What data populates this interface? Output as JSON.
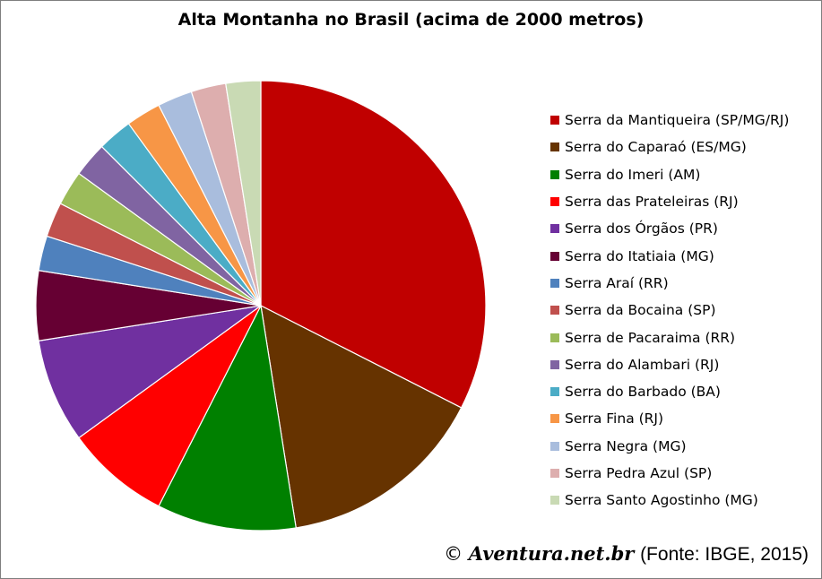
{
  "chart_data": {
    "type": "pie",
    "title": "Alta Montanha no Brasil (acima de 2000 metros)",
    "legend_position": "right",
    "slices": [
      {
        "label": "Serra da Mantiqueira (SP/MG/RJ)",
        "value": 13,
        "color": "#C00000"
      },
      {
        "label": "Serra do Caparaó (ES/MG)",
        "value": 6,
        "color": "#663300"
      },
      {
        "label": "Serra do Imeri (AM)",
        "value": 4,
        "color": "#008000"
      },
      {
        "label": "Serra das Prateleiras (RJ)",
        "value": 3,
        "color": "#FF0000"
      },
      {
        "label": "Serra dos Órgãos (PR)",
        "value": 3,
        "color": "#7030A0"
      },
      {
        "label": "Serra do Itatiaia (MG)",
        "value": 2,
        "color": "#660033"
      },
      {
        "label": "Serra Araí (RR)",
        "value": 1,
        "color": "#4F81BD"
      },
      {
        "label": "Serra da Bocaina (SP)",
        "value": 1,
        "color": "#C0504D"
      },
      {
        "label": "Serra de Pacaraima (RR)",
        "value": 1,
        "color": "#9BBB59"
      },
      {
        "label": "Serra do Alambari (RJ)",
        "value": 1,
        "color": "#8064A2"
      },
      {
        "label": "Serra do Barbado (BA)",
        "value": 1,
        "color": "#4BACC6"
      },
      {
        "label": "Serra Fina (RJ)",
        "value": 1,
        "color": "#F79646"
      },
      {
        "label": "Serra Negra (MG)",
        "value": 1,
        "color": "#A9BDDD"
      },
      {
        "label": "Serra Pedra Azul (SP)",
        "value": 1,
        "color": "#DDAEAE"
      },
      {
        "label": "Serra Santo Agostinho (MG)",
        "value": 1,
        "color": "#C9DAB4"
      }
    ]
  },
  "credit": {
    "copyright_symbol": "©",
    "brand": "Aventura.net.br",
    "source": "(Fonte: IBGE, 2015)"
  }
}
